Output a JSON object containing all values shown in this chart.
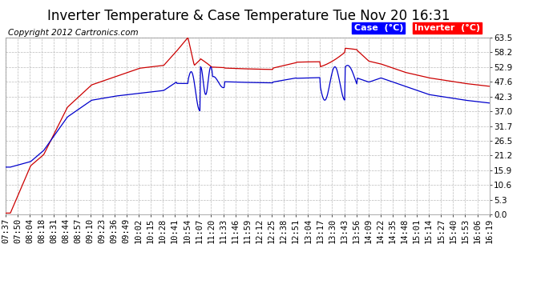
{
  "title": "Inverter Temperature & Case Temperature Tue Nov 20 16:31",
  "copyright": "Copyright 2012 Cartronics.com",
  "legend_case_label": "Case  (°C)",
  "legend_inv_label": "Inverter  (°C)",
  "case_color": "#0000cc",
  "inverter_color": "#cc0000",
  "y_min": 0.0,
  "y_max": 63.5,
  "y_ticks": [
    0.0,
    5.3,
    10.6,
    15.9,
    21.2,
    26.5,
    31.7,
    37.0,
    42.3,
    47.6,
    52.9,
    58.2,
    63.5
  ],
  "x_labels": [
    "07:37",
    "07:50",
    "08:04",
    "08:18",
    "08:31",
    "08:44",
    "08:57",
    "09:10",
    "09:23",
    "09:36",
    "09:49",
    "10:02",
    "10:15",
    "10:28",
    "10:41",
    "10:54",
    "11:07",
    "11:20",
    "11:33",
    "11:46",
    "11:59",
    "12:12",
    "12:25",
    "12:38",
    "12:51",
    "13:04",
    "13:17",
    "13:30",
    "13:43",
    "13:56",
    "14:09",
    "14:22",
    "14:35",
    "14:48",
    "15:01",
    "15:14",
    "15:27",
    "15:40",
    "15:53",
    "16:06",
    "16:19"
  ],
  "fig_bg": "#ffffff",
  "plot_bg": "#ffffff",
  "grid_color": "#bbbbbb",
  "title_fontsize": 12,
  "tick_fontsize": 7.5,
  "copyright_fontsize": 7.5
}
